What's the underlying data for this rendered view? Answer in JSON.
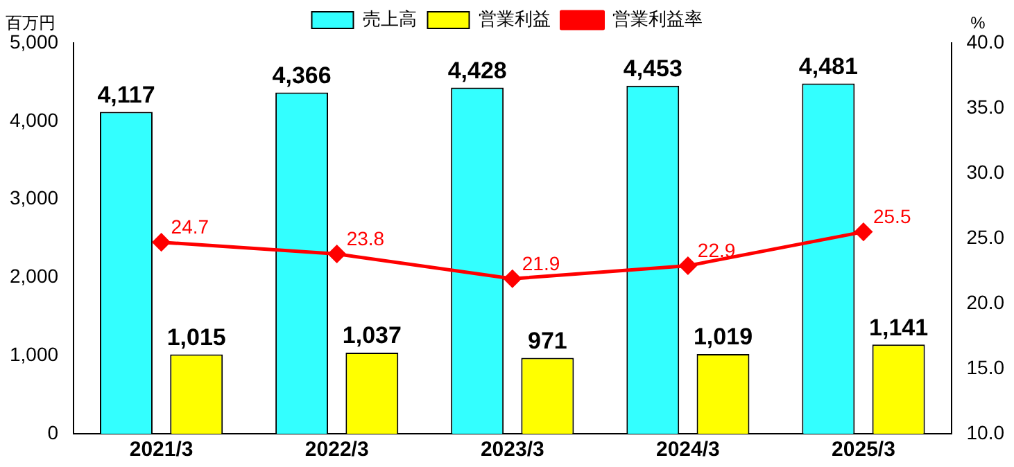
{
  "chart_data": {
    "type": "bar",
    "categories": [
      "2021/3",
      "2022/3",
      "2023/3",
      "2024/3",
      "2025/3"
    ],
    "ylabel": "百万円",
    "y2label": "%",
    "ylim": [
      0,
      5000
    ],
    "yticks": [
      {
        "value": 0,
        "label": "0"
      },
      {
        "value": 1000,
        "label": "1,000"
      },
      {
        "value": 2000,
        "label": "2,000"
      },
      {
        "value": 3000,
        "label": "3,000"
      },
      {
        "value": 4000,
        "label": "4,000"
      },
      {
        "value": 5000,
        "label": "5,000"
      }
    ],
    "y2lim": [
      10,
      40
    ],
    "y2ticks": [
      {
        "value": 10,
        "label": "10.0"
      },
      {
        "value": 15,
        "label": "15.0"
      },
      {
        "value": 20,
        "label": "20.0"
      },
      {
        "value": 25,
        "label": "25.0"
      },
      {
        "value": 30,
        "label": "30.0"
      },
      {
        "value": 35,
        "label": "35.0"
      },
      {
        "value": 40,
        "label": "40.0"
      }
    ],
    "legend": "top",
    "grid": false,
    "marker": "diamond",
    "series": [
      {
        "name": "売上高",
        "color": "#33ffff",
        "values": [
          4117,
          4366,
          4428,
          4453,
          4481
        ],
        "value_labels": [
          "4,117",
          "4,366",
          "4,428",
          "4,453",
          "4,481"
        ]
      },
      {
        "name": "営業利益",
        "color": "#ffff00",
        "values": [
          1015,
          1037,
          971,
          1019,
          1141
        ],
        "value_labels": [
          "1,015",
          "1,037",
          "971",
          "1,019",
          "1,141"
        ]
      },
      {
        "name": "営業利益率",
        "type": "line",
        "axis": "y2",
        "color": "#ff0000",
        "values": [
          24.7,
          23.8,
          21.9,
          22.9,
          25.5
        ],
        "value_labels": [
          "24.7",
          "23.8",
          "21.9",
          "22.9",
          "25.5"
        ]
      }
    ]
  }
}
